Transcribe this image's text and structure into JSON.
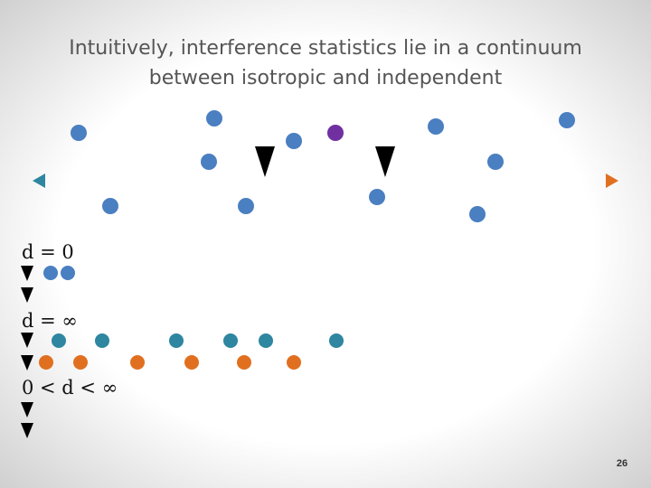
{
  "slide": {
    "title_lines": [
      "Intuitively, interference statistics lie in a continuum",
      "between isotropic and independent"
    ],
    "labels": [
      "d = 0",
      "d = ∞",
      "0 < d < ∞"
    ],
    "page_number": "26"
  }
}
